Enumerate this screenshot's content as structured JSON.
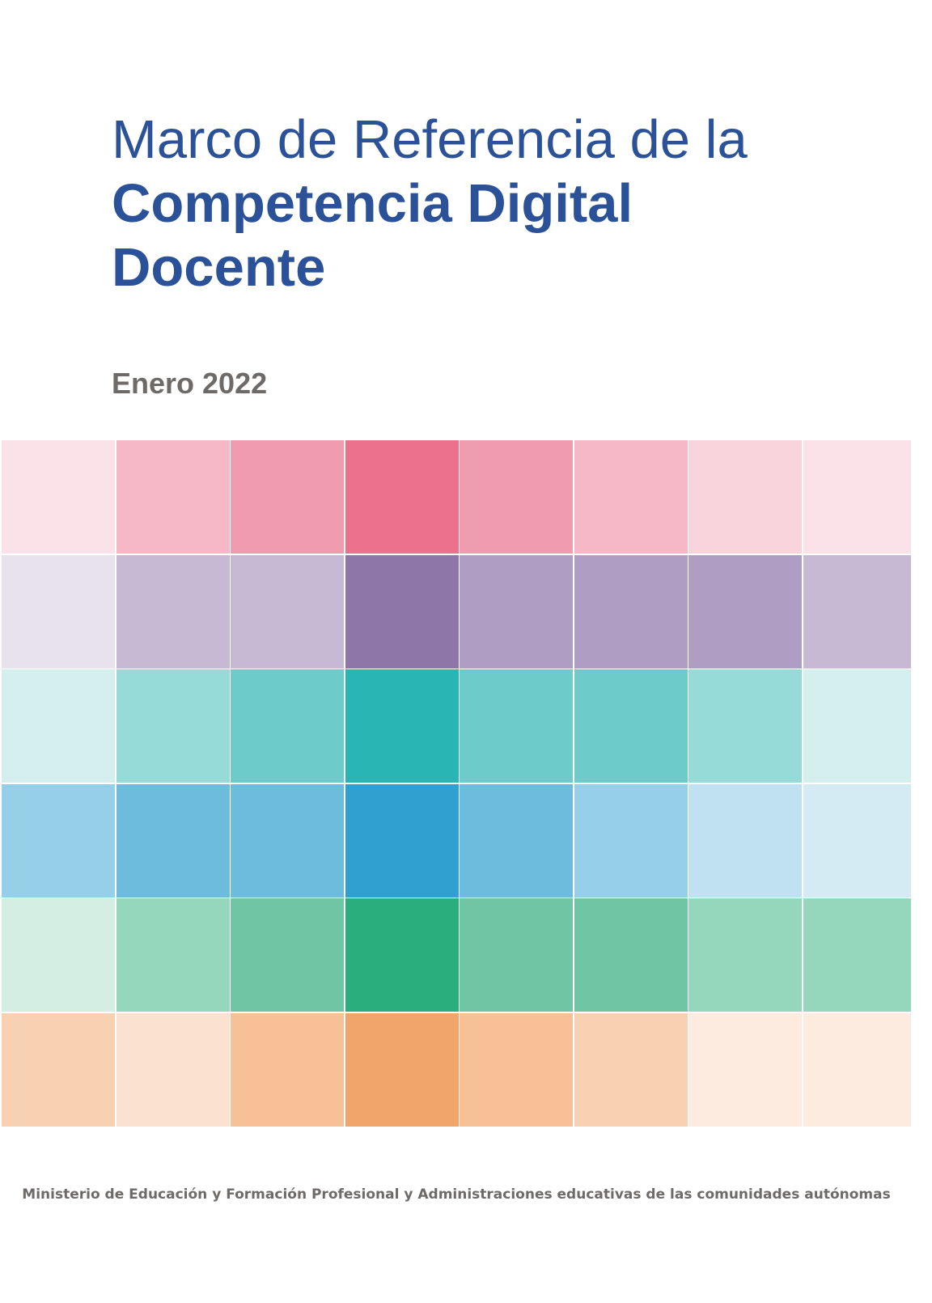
{
  "title": {
    "line1": "Marco de Referencia de la",
    "line2": "Competencia Digital",
    "line3": "Docente"
  },
  "date": "Enero 2022",
  "footer": "Ministerio de Educación y Formación Profesional y Administraciones educativas de las comunidades autónomas",
  "colors": {
    "title": "#2b5298",
    "muted_text": "#6e6a68"
  },
  "mosaic": [
    [
      "#fae2e8",
      "#f6b7c7",
      "#f09caf",
      "#ec718c",
      "#f09caf",
      "#f6b7c7",
      "#f9d4dc",
      "#fae2e8"
    ],
    [
      "#e8e2ed",
      "#c7b8d4",
      "#c7b8d4",
      "#8f76a9",
      "#af9dc4",
      "#af9dc4",
      "#af9dc4",
      "#c7b8d4"
    ],
    [
      "#d5efef",
      "#96dbd8",
      "#6dcbca",
      "#2ab5b5",
      "#6dcbca",
      "#6dcbca",
      "#96dbd8",
      "#d5efef"
    ],
    [
      "#96cfe8",
      "#6ebcdd",
      "#6ebcdd",
      "#2fa0d0",
      "#6ebcdd",
      "#96cfe8",
      "#bfe1f1",
      "#d5ebf4"
    ],
    [
      "#d4eee3",
      "#95d7bd",
      "#6fc5a4",
      "#2bae7d",
      "#6fc5a4",
      "#6fc5a4",
      "#95d7bd",
      "#95d7bd"
    ],
    [
      "#f8d1b2",
      "#fbe1d0",
      "#f7c097",
      "#f2a56a",
      "#f7c097",
      "#f8d1b2",
      "#fcebde",
      "#fcebde"
    ]
  ]
}
